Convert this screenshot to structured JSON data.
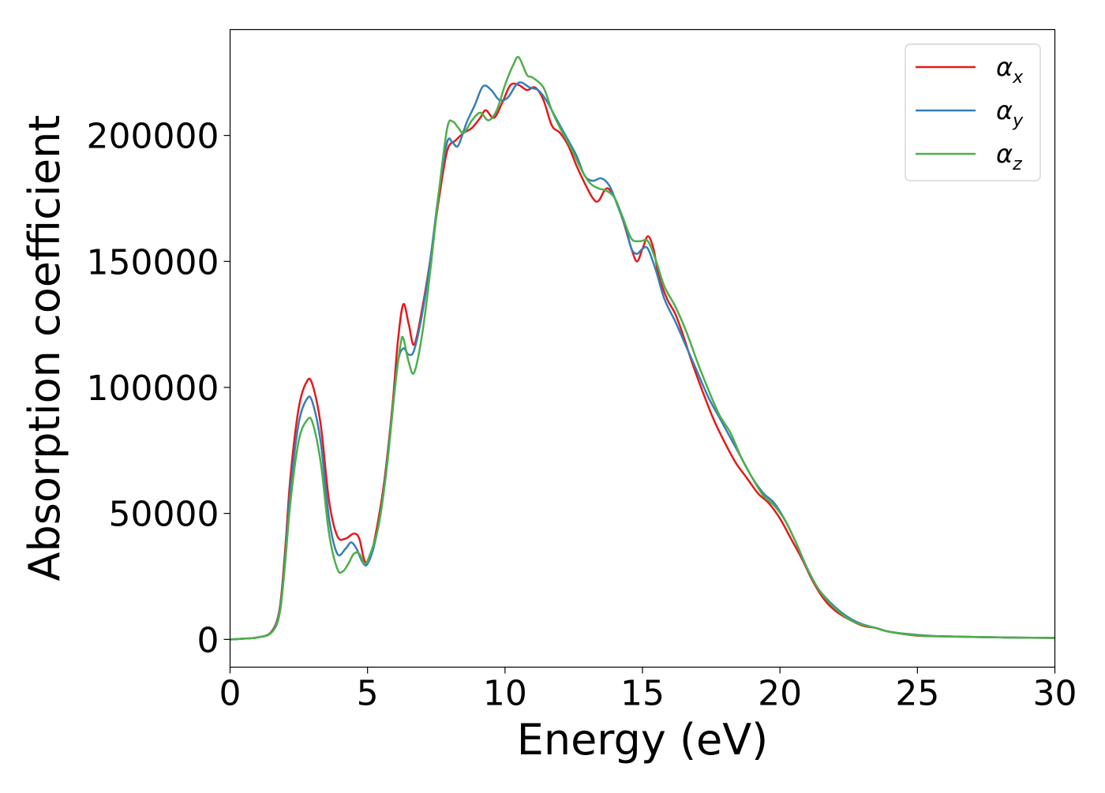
{
  "chart_data": {
    "type": "line",
    "title": "",
    "xlabel": "Energy (eV)",
    "ylabel": "Absorption coefficient",
    "xlim": [
      0,
      30
    ],
    "ylim": [
      -11000,
      242000
    ],
    "xticks": [
      0,
      5,
      10,
      15,
      20,
      25,
      30
    ],
    "yticks": [
      0,
      50000,
      100000,
      150000,
      200000
    ],
    "grid": false,
    "legend_position": "top-right",
    "series": [
      {
        "name": "α",
        "subscript": "x",
        "color": "#e41a1c",
        "points": [
          [
            0,
            0
          ],
          [
            0.5,
            300
          ],
          [
            1.0,
            800
          ],
          [
            1.5,
            3000
          ],
          [
            1.8,
            12000
          ],
          [
            2.0,
            35000
          ],
          [
            2.2,
            65000
          ],
          [
            2.5,
            92000
          ],
          [
            2.8,
            102500
          ],
          [
            3.0,
            101000
          ],
          [
            3.3,
            85000
          ],
          [
            3.6,
            55000
          ],
          [
            3.9,
            41000
          ],
          [
            4.2,
            40000
          ],
          [
            4.5,
            42000
          ],
          [
            4.7,
            40000
          ],
          [
            4.9,
            31000
          ],
          [
            5.1,
            33000
          ],
          [
            5.3,
            42000
          ],
          [
            5.6,
            62000
          ],
          [
            5.9,
            92000
          ],
          [
            6.1,
            118000
          ],
          [
            6.3,
            133000
          ],
          [
            6.5,
            125000
          ],
          [
            6.7,
            117000
          ],
          [
            7.0,
            132000
          ],
          [
            7.3,
            152000
          ],
          [
            7.6,
            175000
          ],
          [
            7.9,
            194000
          ],
          [
            8.2,
            198000
          ],
          [
            8.5,
            201000
          ],
          [
            8.8,
            203000
          ],
          [
            9.1,
            207000
          ],
          [
            9.3,
            210000
          ],
          [
            9.6,
            207000
          ],
          [
            9.9,
            213000
          ],
          [
            10.2,
            220000
          ],
          [
            10.5,
            220000
          ],
          [
            10.8,
            218000
          ],
          [
            11.1,
            219000
          ],
          [
            11.4,
            214000
          ],
          [
            11.7,
            204000
          ],
          [
            12.0,
            201000
          ],
          [
            12.3,
            196000
          ],
          [
            12.6,
            188000
          ],
          [
            12.9,
            181000
          ],
          [
            13.2,
            175000
          ],
          [
            13.4,
            174000
          ],
          [
            13.7,
            179000
          ],
          [
            14.0,
            175000
          ],
          [
            14.3,
            166000
          ],
          [
            14.6,
            155000
          ],
          [
            14.8,
            150000
          ],
          [
            15.0,
            155000
          ],
          [
            15.2,
            160000
          ],
          [
            15.4,
            155000
          ],
          [
            15.6,
            144000
          ],
          [
            15.9,
            135000
          ],
          [
            16.2,
            129000
          ],
          [
            16.5,
            120000
          ],
          [
            16.8,
            110000
          ],
          [
            17.2,
            98000
          ],
          [
            17.6,
            87000
          ],
          [
            18.0,
            78000
          ],
          [
            18.4,
            70000
          ],
          [
            18.8,
            64000
          ],
          [
            19.2,
            58000
          ],
          [
            19.6,
            54000
          ],
          [
            20.0,
            48000
          ],
          [
            20.4,
            40000
          ],
          [
            20.8,
            32000
          ],
          [
            21.2,
            23000
          ],
          [
            21.6,
            16000
          ],
          [
            22.0,
            11500
          ],
          [
            22.5,
            8000
          ],
          [
            23.0,
            5500
          ],
          [
            23.5,
            4500
          ],
          [
            24.0,
            3000
          ],
          [
            25.0,
            1500
          ],
          [
            26.0,
            1200
          ],
          [
            28.0,
            800
          ],
          [
            30.0,
            600
          ]
        ]
      },
      {
        "name": "α",
        "subscript": "y",
        "color": "#377eb8",
        "points": [
          [
            0,
            0
          ],
          [
            0.5,
            300
          ],
          [
            1.0,
            800
          ],
          [
            1.5,
            2800
          ],
          [
            1.8,
            11000
          ],
          [
            2.0,
            32000
          ],
          [
            2.2,
            60000
          ],
          [
            2.5,
            86000
          ],
          [
            2.8,
            95500
          ],
          [
            3.0,
            94000
          ],
          [
            3.3,
            78000
          ],
          [
            3.6,
            48000
          ],
          [
            3.9,
            34000
          ],
          [
            4.2,
            36000
          ],
          [
            4.4,
            38500
          ],
          [
            4.6,
            36000
          ],
          [
            4.8,
            31000
          ],
          [
            5.0,
            30000
          ],
          [
            5.3,
            40000
          ],
          [
            5.6,
            60000
          ],
          [
            5.9,
            90000
          ],
          [
            6.1,
            110000
          ],
          [
            6.3,
            115500
          ],
          [
            6.5,
            113000
          ],
          [
            6.7,
            115000
          ],
          [
            7.0,
            130000
          ],
          [
            7.3,
            152000
          ],
          [
            7.6,
            178000
          ],
          [
            7.9,
            197500
          ],
          [
            8.1,
            197000
          ],
          [
            8.3,
            196000
          ],
          [
            8.6,
            205000
          ],
          [
            8.9,
            212000
          ],
          [
            9.2,
            219500
          ],
          [
            9.5,
            218000
          ],
          [
            9.8,
            214000
          ],
          [
            10.1,
            215000
          ],
          [
            10.4,
            220000
          ],
          [
            10.6,
            221000
          ],
          [
            10.9,
            219000
          ],
          [
            11.2,
            218000
          ],
          [
            11.5,
            214000
          ],
          [
            11.8,
            208000
          ],
          [
            12.2,
            200000
          ],
          [
            12.6,
            192000
          ],
          [
            12.9,
            184000
          ],
          [
            13.2,
            182000
          ],
          [
            13.5,
            183000
          ],
          [
            13.8,
            180000
          ],
          [
            14.1,
            172000
          ],
          [
            14.4,
            163000
          ],
          [
            14.6,
            155000
          ],
          [
            14.8,
            153000
          ],
          [
            15.0,
            155000
          ],
          [
            15.2,
            155000
          ],
          [
            15.5,
            146000
          ],
          [
            15.8,
            135000
          ],
          [
            16.2,
            126000
          ],
          [
            16.6,
            116000
          ],
          [
            17.0,
            106000
          ],
          [
            17.4,
            96000
          ],
          [
            17.8,
            88000
          ],
          [
            18.2,
            80000
          ],
          [
            18.6,
            72000
          ],
          [
            19.0,
            64000
          ],
          [
            19.4,
            58000
          ],
          [
            19.8,
            54000
          ],
          [
            20.2,
            47000
          ],
          [
            20.6,
            38000
          ],
          [
            21.0,
            28000
          ],
          [
            21.4,
            20000
          ],
          [
            21.8,
            15000
          ],
          [
            22.2,
            11000
          ],
          [
            22.6,
            8000
          ],
          [
            23.0,
            6000
          ],
          [
            23.5,
            4500
          ],
          [
            24.0,
            3000
          ],
          [
            25.0,
            1800
          ],
          [
            26.0,
            1200
          ],
          [
            28.0,
            800
          ],
          [
            30.0,
            600
          ]
        ]
      },
      {
        "name": "α",
        "subscript": "z",
        "color": "#4daf4a",
        "points": [
          [
            0,
            0
          ],
          [
            0.5,
            300
          ],
          [
            1.0,
            800
          ],
          [
            1.5,
            2600
          ],
          [
            1.8,
            10000
          ],
          [
            2.0,
            30000
          ],
          [
            2.2,
            55000
          ],
          [
            2.5,
            79000
          ],
          [
            2.8,
            87000
          ],
          [
            3.0,
            86000
          ],
          [
            3.3,
            70000
          ],
          [
            3.6,
            42000
          ],
          [
            3.9,
            28000
          ],
          [
            4.1,
            27000
          ],
          [
            4.3,
            30000
          ],
          [
            4.5,
            34000
          ],
          [
            4.7,
            34000
          ],
          [
            4.9,
            30000
          ],
          [
            5.1,
            34000
          ],
          [
            5.4,
            45000
          ],
          [
            5.7,
            68000
          ],
          [
            6.0,
            100000
          ],
          [
            6.2,
            117000
          ],
          [
            6.3,
            119500
          ],
          [
            6.5,
            110000
          ],
          [
            6.7,
            106000
          ],
          [
            7.0,
            122000
          ],
          [
            7.3,
            148000
          ],
          [
            7.6,
            178000
          ],
          [
            7.9,
            203000
          ],
          [
            8.1,
            205500
          ],
          [
            8.3,
            203000
          ],
          [
            8.5,
            201000
          ],
          [
            8.8,
            206000
          ],
          [
            9.1,
            209000
          ],
          [
            9.4,
            206000
          ],
          [
            9.7,
            210000
          ],
          [
            10.0,
            220000
          ],
          [
            10.3,
            228000
          ],
          [
            10.5,
            231000
          ],
          [
            10.8,
            224000
          ],
          [
            11.0,
            223000
          ],
          [
            11.4,
            219000
          ],
          [
            11.7,
            210000
          ],
          [
            12.0,
            203000
          ],
          [
            12.4,
            195000
          ],
          [
            12.8,
            186000
          ],
          [
            13.1,
            181000
          ],
          [
            13.4,
            179000
          ],
          [
            13.7,
            178000
          ],
          [
            14.0,
            175000
          ],
          [
            14.3,
            167000
          ],
          [
            14.6,
            159000
          ],
          [
            14.9,
            158000
          ],
          [
            15.2,
            158000
          ],
          [
            15.5,
            150000
          ],
          [
            15.8,
            140000
          ],
          [
            16.2,
            132000
          ],
          [
            16.6,
            122000
          ],
          [
            17.0,
            110000
          ],
          [
            17.4,
            99000
          ],
          [
            17.8,
            89000
          ],
          [
            18.2,
            82000
          ],
          [
            18.6,
            72000
          ],
          [
            19.0,
            64000
          ],
          [
            19.4,
            57000
          ],
          [
            19.8,
            53000
          ],
          [
            20.2,
            47000
          ],
          [
            20.6,
            38000
          ],
          [
            21.0,
            28000
          ],
          [
            21.4,
            20000
          ],
          [
            21.8,
            14500
          ],
          [
            22.2,
            10500
          ],
          [
            22.6,
            7500
          ],
          [
            23.0,
            5800
          ],
          [
            23.5,
            4500
          ],
          [
            24.0,
            3000
          ],
          [
            25.0,
            1600
          ],
          [
            26.0,
            1200
          ],
          [
            28.0,
            800
          ],
          [
            30.0,
            600
          ]
        ]
      }
    ]
  }
}
